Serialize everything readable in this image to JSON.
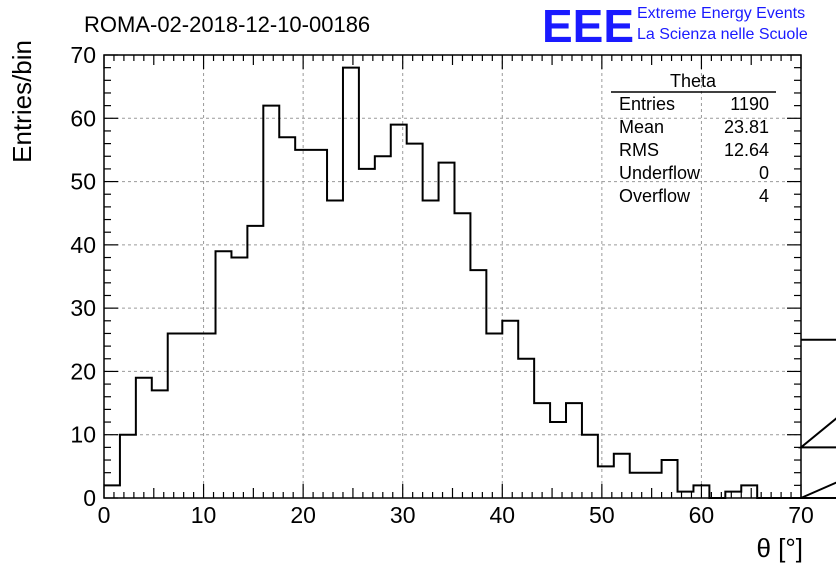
{
  "header": {
    "run_title": "ROMA-02-2018-12-10-00186",
    "logo_text": "EEE",
    "logo_line1": "Extreme Energy Events",
    "logo_line2": "La Scienza nelle Scuole"
  },
  "stats_box": {
    "title": "Theta",
    "rows": [
      {
        "label": "Entries",
        "value": "1190"
      },
      {
        "label": "Mean",
        "value": "23.81"
      },
      {
        "label": "RMS",
        "value": "12.64"
      },
      {
        "label": "Underflow",
        "value": "0"
      },
      {
        "label": "Overflow",
        "value": "4"
      }
    ]
  },
  "colors": {
    "line": "#000000",
    "grid": "#9a9a9a",
    "logo": "#1a1aff"
  },
  "chart_data": {
    "type": "bar",
    "title": "ROMA-02-2018-12-10-00186",
    "xlabel": "θ [°]",
    "ylabel": "Entries/bin",
    "xlim": [
      0,
      70
    ],
    "ylim": [
      0,
      70
    ],
    "bin_width": 1.6,
    "grid": true,
    "x_ticks": [
      0,
      10,
      20,
      30,
      40,
      50,
      60,
      70
    ],
    "y_ticks": [
      0,
      10,
      20,
      30,
      40,
      50,
      60,
      70
    ],
    "x_tick_labels": [
      "0",
      "10",
      "20",
      "30",
      "40",
      "50",
      "60",
      "70"
    ],
    "y_tick_labels": [
      "0",
      "10",
      "20",
      "30",
      "40",
      "50",
      "60",
      "70"
    ],
    "bin_edges_start": 0,
    "values": [
      2,
      10,
      19,
      17,
      26,
      26,
      26,
      39,
      38,
      43,
      62,
      57,
      55,
      55,
      47,
      68,
      52,
      54,
      59,
      56,
      47,
      53,
      45,
      36,
      26,
      28,
      22,
      15,
      12,
      15,
      10,
      5,
      7,
      4,
      4,
      6,
      1,
      2,
      0,
      1,
      2,
      0,
      0,
      0,
      0,
      0,
      0,
      0,
      0,
      0,
      0,
      8,
      25
    ]
  }
}
